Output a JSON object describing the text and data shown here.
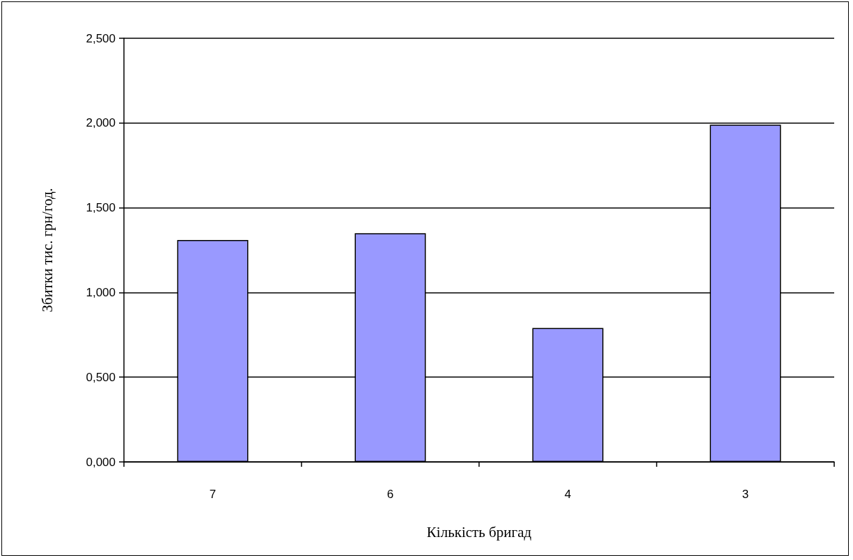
{
  "chart_data": {
    "type": "bar",
    "xlabel": "Кількість бригад",
    "ylabel": "Збитки тис. грн/год.",
    "categories": [
      "7",
      "6",
      "4",
      "3"
    ],
    "values": [
      1.31,
      1.35,
      0.79,
      1.99
    ],
    "color": "#9999ff",
    "ylim": [
      0,
      2.5
    ],
    "yticks": [
      {
        "value": 0,
        "label": "0,000"
      },
      {
        "value": 0.5,
        "label": "0,500"
      },
      {
        "value": 1,
        "label": "1,000"
      },
      {
        "value": 1.5,
        "label": "1,500"
      },
      {
        "value": 2,
        "label": "2,000"
      },
      {
        "value": 2.5,
        "label": "2,500"
      }
    ],
    "grid": "y"
  }
}
